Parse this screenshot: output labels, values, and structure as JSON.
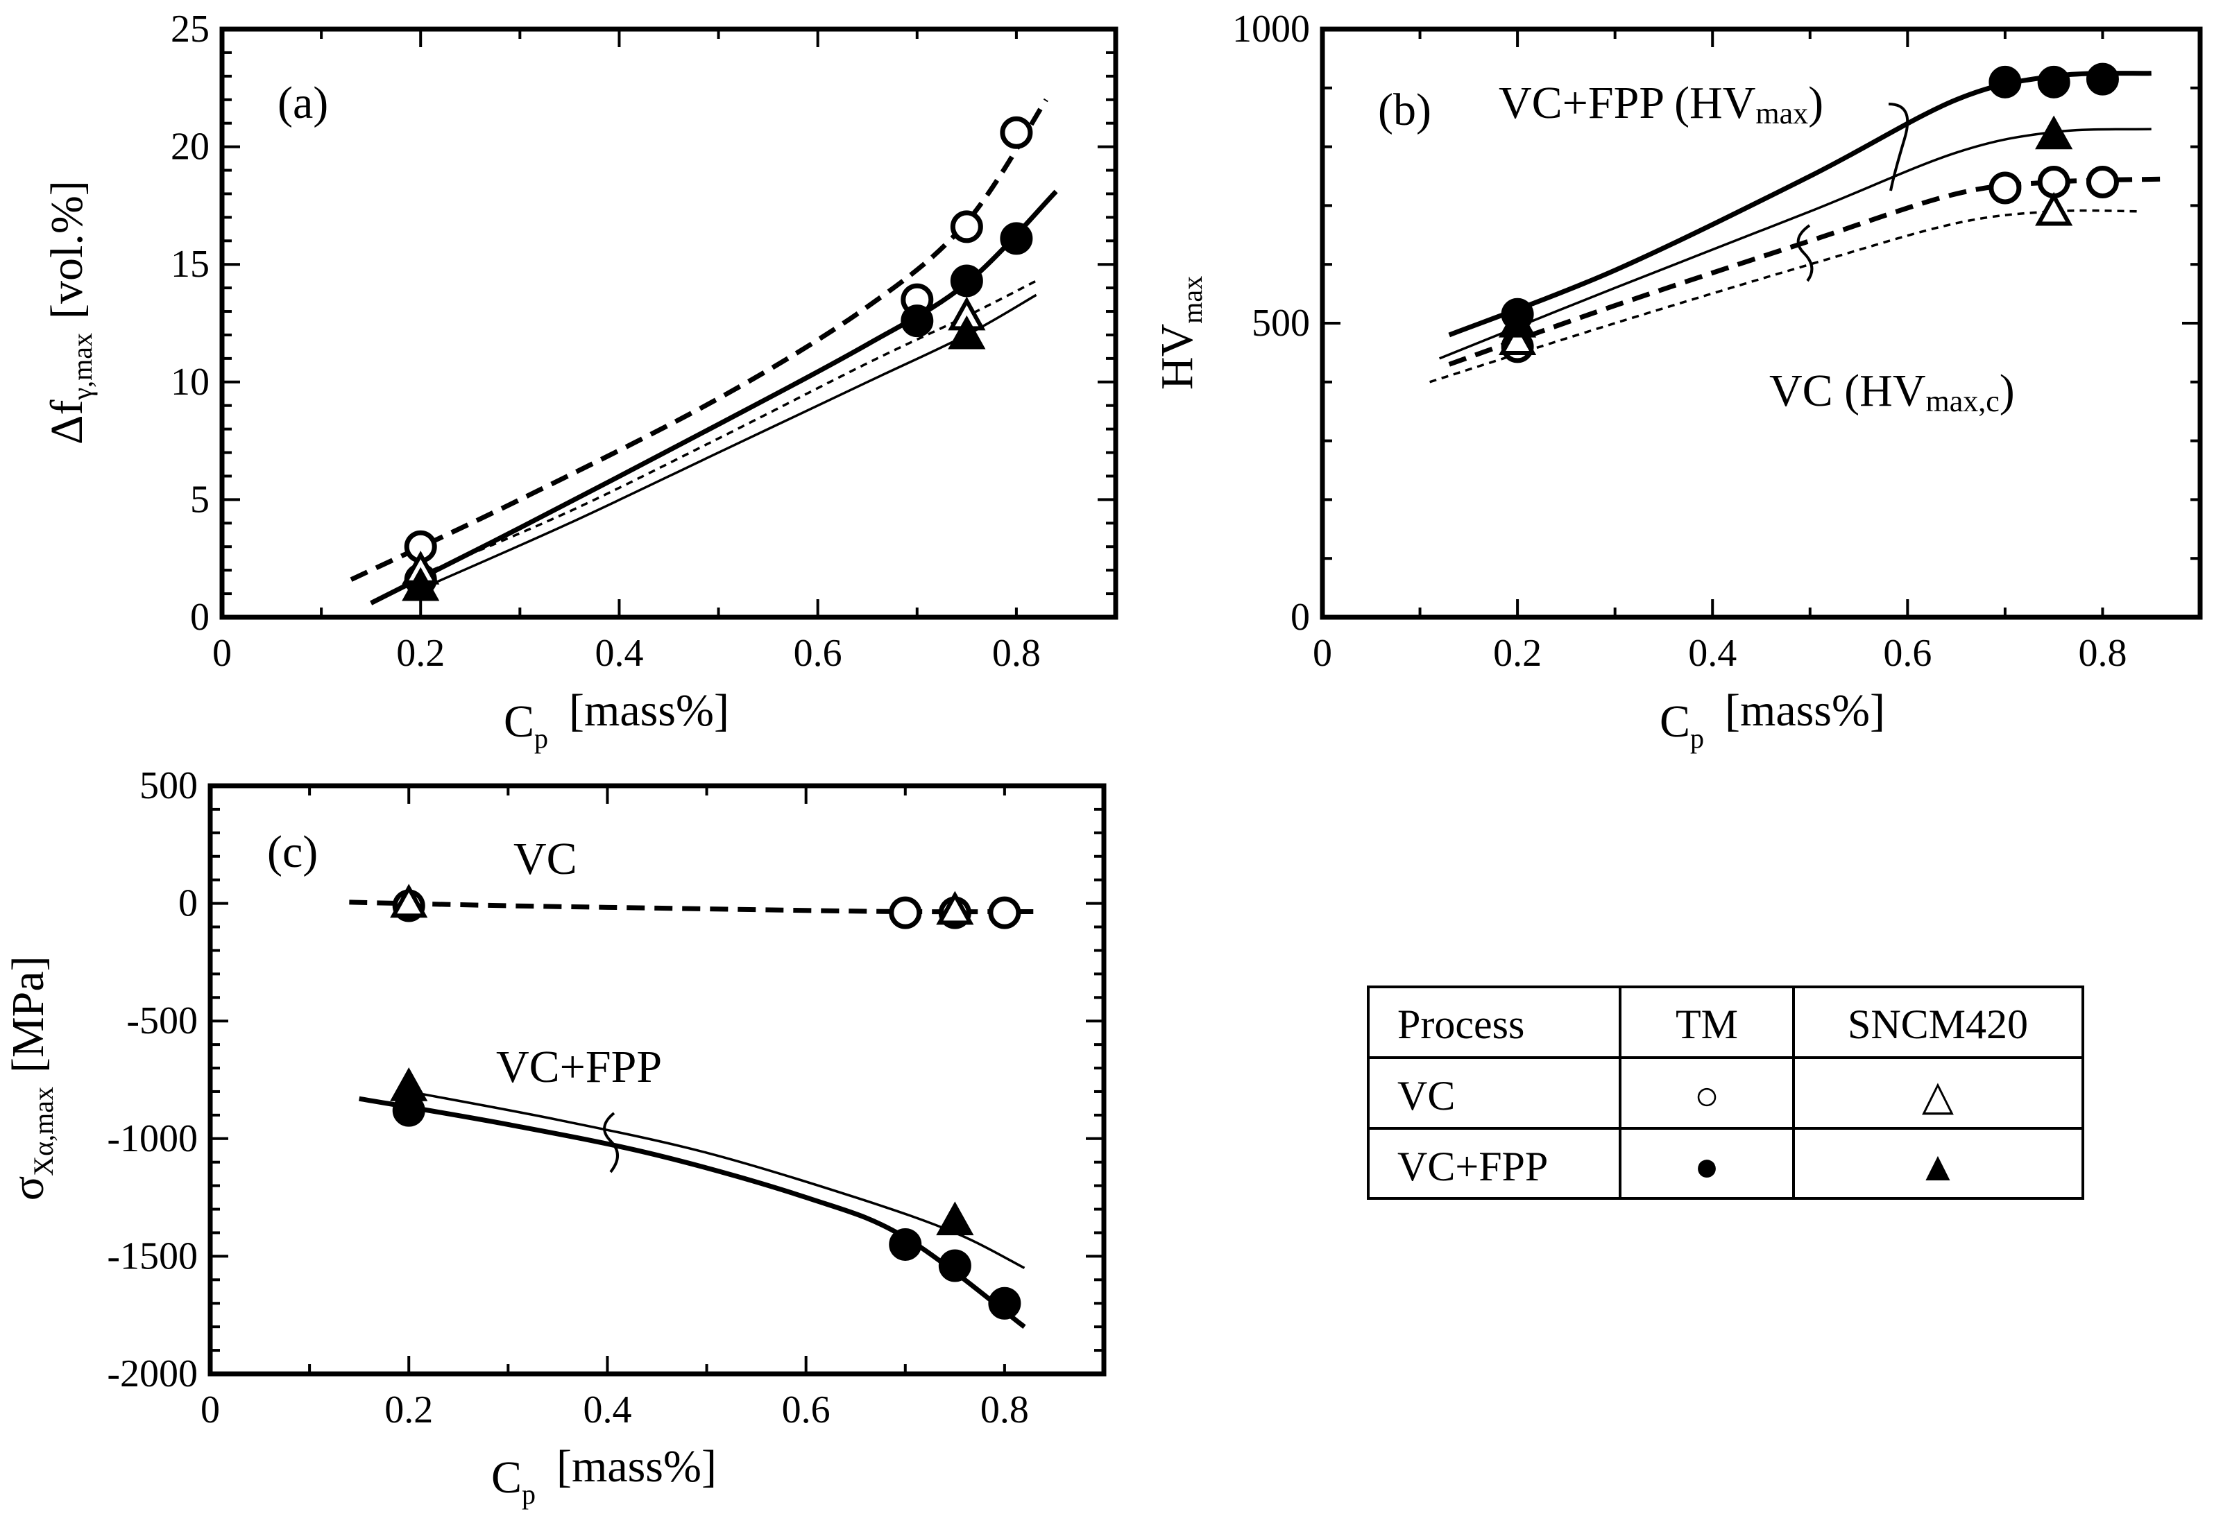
{
  "chart_data": [
    {
      "type": "scatter",
      "panel_label": "(a)",
      "xlabel": "C",
      "xlabel_sub": "p",
      "xlabel_unit": "[mass%]",
      "ylabel": "Δf",
      "ylabel_sub": "γ,max",
      "ylabel_unit": "[vol.%]",
      "xlim": [
        0,
        0.9
      ],
      "ylim": [
        0,
        25
      ],
      "xticks": [
        "0",
        "0.2",
        "0.4",
        "0.6",
        "0.8"
      ],
      "yticks": [
        "0",
        "5",
        "10",
        "15",
        "20",
        "25"
      ],
      "series": [
        {
          "name": "VC (TM)",
          "marker": "open-circle",
          "x": [
            0.2,
            0.7,
            0.75,
            0.8
          ],
          "y": [
            3.0,
            13.5,
            16.6,
            20.6
          ]
        },
        {
          "name": "VC+FPP (TM)",
          "marker": "filled-circle",
          "x": [
            0.2,
            0.7,
            0.75,
            0.8
          ],
          "y": [
            1.6,
            12.6,
            14.3,
            16.1
          ]
        },
        {
          "name": "VC (SNCM420)",
          "marker": "open-triangle",
          "x": [
            0.2,
            0.75
          ],
          "y": [
            2.0,
            12.8
          ]
        },
        {
          "name": "VC+FPP (SNCM420)",
          "marker": "filled-triangle",
          "x": [
            0.2,
            0.75
          ],
          "y": [
            1.3,
            12.0
          ]
        }
      ],
      "curves": [
        {
          "name": "VC fit (TM)",
          "style": "thick-dashed",
          "x": [
            0.13,
            0.3,
            0.5,
            0.65,
            0.75,
            0.83
          ],
          "y": [
            1.6,
            5.0,
            9.3,
            13.2,
            16.8,
            22.0
          ]
        },
        {
          "name": "VC+FPP fit (TM)",
          "style": "thick-solid",
          "x": [
            0.15,
            0.3,
            0.5,
            0.65,
            0.75,
            0.84
          ],
          "y": [
            0.6,
            3.8,
            8.2,
            11.6,
            14.2,
            18.1
          ]
        },
        {
          "name": "VC fit (SNCM420)",
          "style": "thin-dotted",
          "x": [
            0.2,
            0.35,
            0.5,
            0.65,
            0.75,
            0.82
          ],
          "y": [
            1.8,
            4.5,
            7.6,
            10.8,
            12.8,
            14.3
          ]
        },
        {
          "name": "VC+FPP fit (SNCM420)",
          "style": "thin-solid",
          "x": [
            0.2,
            0.35,
            0.5,
            0.65,
            0.75,
            0.82
          ],
          "y": [
            1.2,
            4.0,
            7.0,
            10.0,
            12.0,
            13.7
          ]
        }
      ]
    },
    {
      "type": "scatter",
      "panel_label": "(b)",
      "xlabel": "C",
      "xlabel_sub": "p",
      "xlabel_unit": "[mass%]",
      "ylabel": "HV",
      "ylabel_sub": "max",
      "xlim": [
        0,
        0.9
      ],
      "ylim": [
        0,
        1000
      ],
      "xticks": [
        "0",
        "0.2",
        "0.4",
        "0.6",
        "0.8"
      ],
      "yticks": [
        "0",
        "500",
        "1000"
      ],
      "annotations": [
        {
          "text": "VC+FPP (HV",
          "sub": "max",
          "close": ")"
        },
        {
          "text": "VC (HV",
          "sub": "max,c",
          "close": ")"
        }
      ],
      "series": [
        {
          "name": "VC (TM)",
          "marker": "open-circle",
          "x": [
            0.2,
            0.7,
            0.75,
            0.8
          ],
          "y": [
            460,
            730,
            740,
            740
          ]
        },
        {
          "name": "VC+FPP (TM)",
          "marker": "filled-circle",
          "x": [
            0.2,
            0.7,
            0.75,
            0.8
          ],
          "y": [
            515,
            910,
            910,
            915
          ]
        },
        {
          "name": "VC (SNCM420)",
          "marker": "open-triangle",
          "x": [
            0.2,
            0.75
          ],
          "y": [
            470,
            690
          ]
        },
        {
          "name": "VC+FPP (SNCM420)",
          "marker": "filled-triangle",
          "x": [
            0.2,
            0.75
          ],
          "y": [
            500,
            820
          ]
        }
      ],
      "curves": [
        {
          "name": "VC+FPP fit (TM)",
          "style": "thick-solid",
          "x": [
            0.13,
            0.3,
            0.5,
            0.65,
            0.75,
            0.85
          ],
          "y": [
            480,
            590,
            750,
            880,
            920,
            925
          ]
        },
        {
          "name": "VC+FPP fit (SNCM420)",
          "style": "thin-solid",
          "x": [
            0.12,
            0.3,
            0.5,
            0.65,
            0.75,
            0.85
          ],
          "y": [
            440,
            560,
            690,
            790,
            825,
            830
          ]
        },
        {
          "name": "VC fit (TM)",
          "style": "thick-dashed",
          "x": [
            0.13,
            0.3,
            0.5,
            0.65,
            0.75,
            0.86
          ],
          "y": [
            430,
            530,
            640,
            720,
            740,
            745
          ]
        },
        {
          "name": "VC fit (SNCM420)",
          "style": "thin-dotted",
          "x": [
            0.11,
            0.3,
            0.5,
            0.65,
            0.75,
            0.84
          ],
          "y": [
            400,
            500,
            600,
            670,
            690,
            690
          ]
        }
      ]
    },
    {
      "type": "scatter",
      "panel_label": "(c)",
      "xlabel": "C",
      "xlabel_sub": "p",
      "xlabel_unit": "[mass%]",
      "ylabel": "σ",
      "ylabel_sub": "Xα,max",
      "ylabel_unit": "[MPa]",
      "xlim": [
        0,
        0.9
      ],
      "ylim": [
        -2000,
        500
      ],
      "xticks": [
        "0",
        "0.2",
        "0.4",
        "0.6",
        "0.8"
      ],
      "yticks": [
        "-2000",
        "-1500",
        "-1000",
        "-500",
        "0",
        "500"
      ],
      "annotations": [
        {
          "text": "VC"
        },
        {
          "text": "VC+FPP"
        }
      ],
      "series": [
        {
          "name": "VC (TM)",
          "marker": "open-circle",
          "x": [
            0.2,
            0.7,
            0.75,
            0.8
          ],
          "y": [
            -10,
            -40,
            -40,
            -40
          ]
        },
        {
          "name": "VC+FPP (TM)",
          "marker": "filled-circle",
          "x": [
            0.2,
            0.7,
            0.75,
            0.8
          ],
          "y": [
            -880,
            -1450,
            -1540,
            -1700
          ]
        },
        {
          "name": "VC (SNCM420)",
          "marker": "open-triangle",
          "x": [
            0.2,
            0.75
          ],
          "y": [
            0,
            -30
          ]
        },
        {
          "name": "VC+FPP (SNCM420)",
          "marker": "filled-triangle",
          "x": [
            0.2,
            0.75
          ],
          "y": [
            -780,
            -1350
          ]
        }
      ],
      "curves": [
        {
          "name": "VC fit",
          "style": "thick-dashed",
          "x": [
            0.14,
            0.3,
            0.45,
            0.6,
            0.7,
            0.83
          ],
          "y": [
            5,
            -10,
            -20,
            -30,
            -35,
            -35
          ]
        },
        {
          "name": "VC+FPP fit (SNCM420)",
          "style": "thin-solid",
          "x": [
            0.2,
            0.35,
            0.5,
            0.65,
            0.75,
            0.82
          ],
          "y": [
            -800,
            -920,
            -1060,
            -1250,
            -1400,
            -1550
          ]
        },
        {
          "name": "VC+FPP fit (TM)",
          "style": "thick-solid",
          "x": [
            0.15,
            0.3,
            0.45,
            0.6,
            0.7,
            0.82
          ],
          "y": [
            -830,
            -940,
            -1070,
            -1250,
            -1420,
            -1800
          ]
        }
      ]
    }
  ],
  "legend_table": {
    "headers": [
      "Process",
      "TM",
      "SNCM420"
    ],
    "rows": [
      {
        "process": "VC",
        "tm_symbol": "○",
        "sncm_symbol": "△"
      },
      {
        "process": "VC+FPP",
        "tm_symbol": "●",
        "sncm_symbol": "▲"
      }
    ]
  }
}
